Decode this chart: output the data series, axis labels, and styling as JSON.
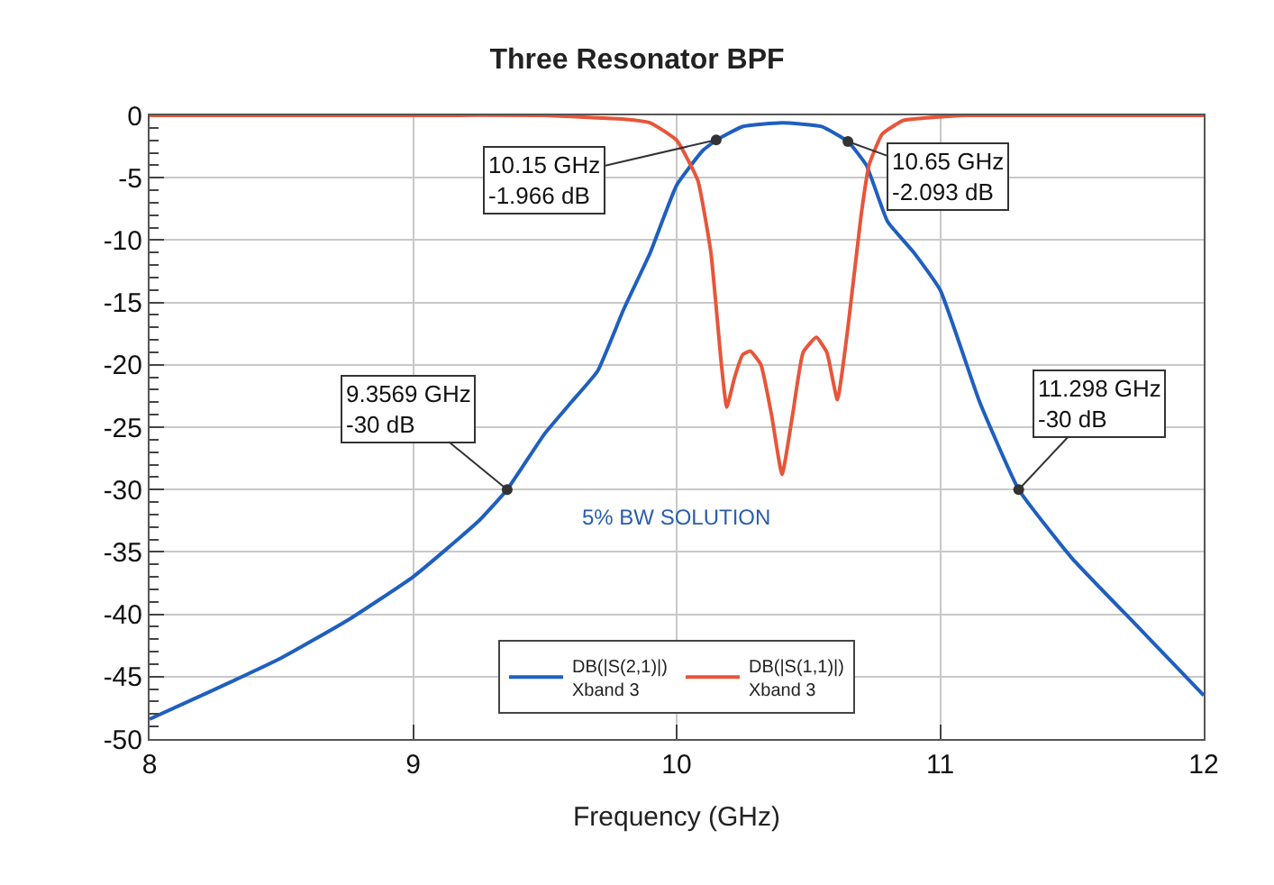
{
  "chart_data": {
    "type": "line",
    "title": "Three Resonator BPF",
    "xlabel": "Frequency (GHz)",
    "xlim": [
      8,
      12
    ],
    "xticks": [
      8,
      9,
      10,
      11,
      12
    ],
    "ylim": [
      -50,
      0
    ],
    "yticks": [
      0,
      -5,
      -10,
      -15,
      -20,
      -25,
      -30,
      -35,
      -40,
      -45,
      -50
    ],
    "grid": true,
    "legend": "bottom",
    "marker": "none",
    "line_style": "solid",
    "series": [
      {
        "name": "DB(|S(2,1)|)\nXband 3",
        "color": "#1f5fbf",
        "x": [
          8,
          8.25,
          8.5,
          8.75,
          9,
          9.25,
          9.3569,
          9.5,
          9.6,
          9.7,
          9.8,
          9.9,
          10,
          10.1,
          10.15,
          10.25,
          10.4,
          10.55,
          10.65,
          10.72,
          10.8,
          10.9,
          11,
          11.15,
          11.298,
          11.5,
          11.75,
          12
        ],
        "values": [
          -48.4,
          -46,
          -43.5,
          -40.5,
          -37,
          -32.5,
          -30,
          -25.5,
          -23,
          -20.5,
          -15.5,
          -11,
          -5.6,
          -2.8,
          -2,
          -0.9,
          -0.6,
          -0.9,
          -2.1,
          -4,
          -8.5,
          -11,
          -14,
          -23,
          -30,
          -35.5,
          -41,
          -46.5
        ]
      },
      {
        "name": "DB(|S(1,1)|)\nXband 3",
        "color": "#e8553a",
        "x": [
          8,
          9,
          9.5,
          9.7,
          9.8,
          9.9,
          10,
          10.08,
          10.13,
          10.17,
          10.19,
          10.22,
          10.25,
          10.28,
          10.32,
          10.36,
          10.4,
          10.44,
          10.48,
          10.53,
          10.57,
          10.61,
          10.65,
          10.7,
          10.73,
          10.78,
          10.86,
          10.95,
          11.1,
          11.3,
          12
        ],
        "values": [
          0,
          0,
          0,
          -0.2,
          -0.3,
          -0.6,
          -2,
          -5.2,
          -11,
          -20,
          -23.4,
          -21,
          -19.2,
          -18.9,
          -20,
          -24,
          -28.8,
          -24,
          -19,
          -17.8,
          -19,
          -22.8,
          -17,
          -8,
          -4,
          -1.5,
          -0.4,
          -0.2,
          0,
          0,
          0
        ]
      }
    ],
    "annotations": [
      {
        "text": "10.15 GHz\n-1.966 dB",
        "x": 10.15,
        "y": -1.966
      },
      {
        "text": "10.65 GHz\n-2.093 dB",
        "x": 10.65,
        "y": -2.093
      },
      {
        "text": "9.3569 GHz\n-30 dB",
        "x": 9.3569,
        "y": -30
      },
      {
        "text": "11.298 GHz\n-30 dB",
        "x": 11.298,
        "y": -30
      },
      "5% BW SOLUTION"
    ]
  }
}
